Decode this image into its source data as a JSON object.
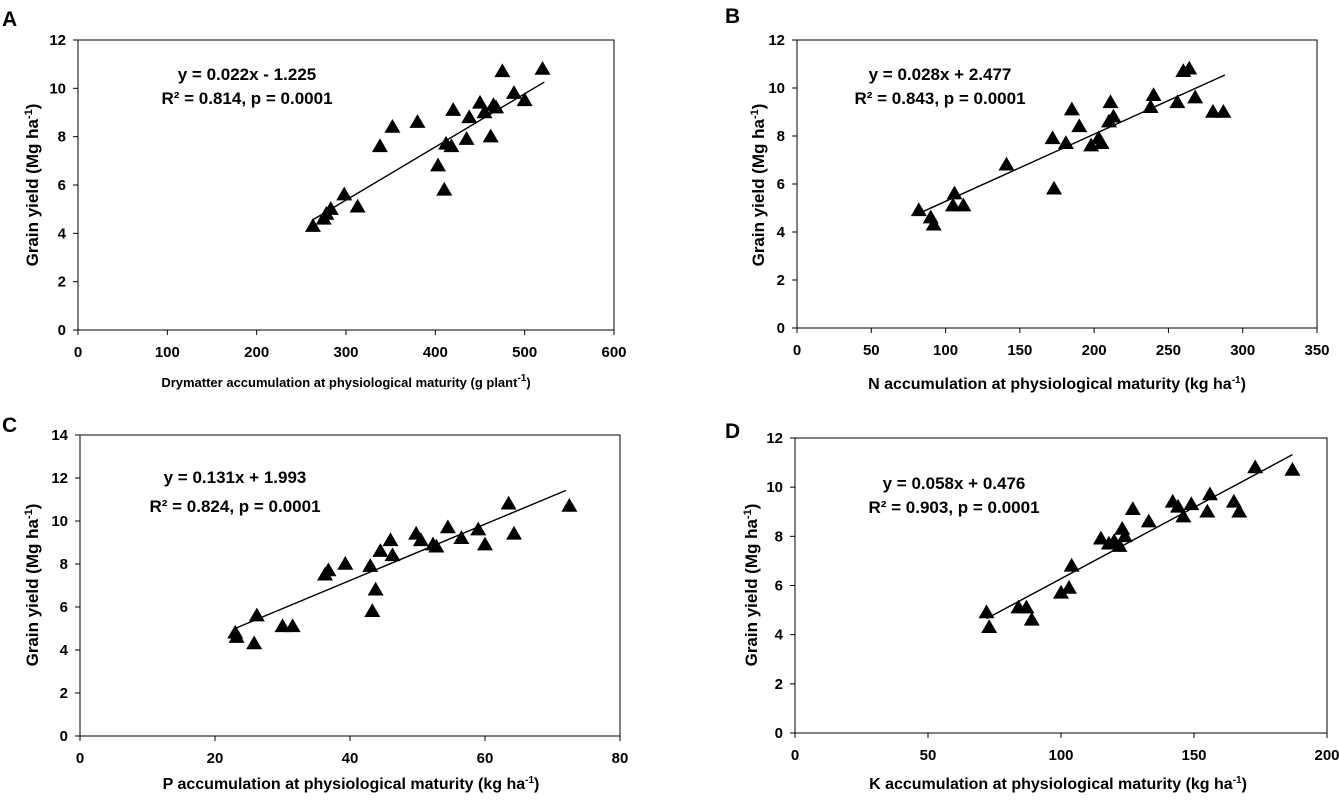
{
  "chart_data": [
    {
      "panel": "A",
      "type": "scatter",
      "xlabel": "Drymatter accumulation at physiological  maturity (g plant",
      "xlabel_sup": "-1",
      "xlabel_end": ")",
      "ylabel": "Grain yield (Mg ha",
      "ylabel_sup": "-1",
      "ylabel_end": ")",
      "xlim": [
        0,
        600
      ],
      "ylim": [
        0,
        12
      ],
      "xticks": [
        0,
        100,
        200,
        300,
        400,
        500,
        600
      ],
      "yticks": [
        0,
        2,
        4,
        6,
        8,
        10,
        12
      ],
      "equation": "y = 0.022x - 1.225",
      "r2_text": "R² = 0.814, p = 0.0001",
      "fit": {
        "slope": 0.022,
        "intercept": -1.225,
        "x_range": [
          263,
          522
        ]
      },
      "points": [
        [
          263,
          4.3
        ],
        [
          275,
          4.6
        ],
        [
          278,
          4.8
        ],
        [
          283,
          5.0
        ],
        [
          298,
          5.6
        ],
        [
          313,
          5.1
        ],
        [
          338,
          7.6
        ],
        [
          352,
          8.4
        ],
        [
          380,
          8.6
        ],
        [
          403,
          6.8
        ],
        [
          410,
          5.8
        ],
        [
          412,
          7.7
        ],
        [
          418,
          7.6
        ],
        [
          420,
          9.1
        ],
        [
          435,
          7.9
        ],
        [
          438,
          8.8
        ],
        [
          450,
          9.4
        ],
        [
          455,
          9.0
        ],
        [
          462,
          8.0
        ],
        [
          465,
          9.3
        ],
        [
          468,
          9.2
        ],
        [
          475,
          10.7
        ],
        [
          488,
          9.8
        ],
        [
          500,
          9.5
        ],
        [
          520,
          10.8
        ]
      ]
    },
    {
      "panel": "B",
      "type": "scatter",
      "xlabel": "N accumulation at physiological maturity (kg ha",
      "xlabel_sup": "-1",
      "xlabel_end": ")",
      "ylabel": "Grain yield (Mg ha",
      "ylabel_sup": "-1",
      "ylabel_end": ")",
      "xlim": [
        0,
        350
      ],
      "ylim": [
        0,
        12
      ],
      "xticks": [
        0,
        50,
        100,
        150,
        200,
        250,
        300,
        350
      ],
      "yticks": [
        0,
        2,
        4,
        6,
        8,
        10,
        12
      ],
      "equation": "y = 0.028x + 2.477",
      "r2_text": "R² = 0.843, p = 0.0001",
      "fit": {
        "slope": 0.028,
        "intercept": 2.477,
        "x_range": [
          82,
          288
        ]
      },
      "points": [
        [
          82,
          4.9
        ],
        [
          90,
          4.6
        ],
        [
          92,
          4.3
        ],
        [
          105,
          5.1
        ],
        [
          106,
          5.6
        ],
        [
          112,
          5.1
        ],
        [
          141,
          6.8
        ],
        [
          172,
          7.9
        ],
        [
          173,
          5.8
        ],
        [
          181,
          7.7
        ],
        [
          185,
          9.1
        ],
        [
          190,
          8.4
        ],
        [
          198,
          7.6
        ],
        [
          203,
          7.9
        ],
        [
          205,
          7.7
        ],
        [
          210,
          8.6
        ],
        [
          211,
          9.4
        ],
        [
          213,
          8.8
        ],
        [
          238,
          9.2
        ],
        [
          240,
          9.7
        ],
        [
          256,
          9.4
        ],
        [
          260,
          10.7
        ],
        [
          264,
          10.8
        ],
        [
          268,
          9.6
        ],
        [
          280,
          9.0
        ],
        [
          287,
          9.0
        ]
      ]
    },
    {
      "panel": "C",
      "type": "scatter",
      "xlabel": "P accumulation at physiological maturity (kg ha",
      "xlabel_sup": "-1",
      "xlabel_end": ")",
      "ylabel": "Grain yield (Mg ha",
      "ylabel_sup": "-1",
      "ylabel_end": ")",
      "xlim": [
        0,
        80
      ],
      "ylim": [
        0,
        14
      ],
      "xticks": [
        0,
        20,
        40,
        60,
        80
      ],
      "yticks": [
        0,
        2,
        4,
        6,
        8,
        10,
        12,
        14
      ],
      "equation": "y = 0.131x + 1.993",
      "r2_text": "R² = 0.824, p = 0.0001",
      "fit": {
        "slope": 0.131,
        "intercept": 1.993,
        "x_range": [
          23,
          72
        ]
      },
      "points": [
        [
          23,
          4.8
        ],
        [
          23.2,
          4.6
        ],
        [
          25.8,
          4.3
        ],
        [
          26.2,
          5.6
        ],
        [
          30,
          5.1
        ],
        [
          31.5,
          5.1
        ],
        [
          36.3,
          7.5
        ],
        [
          36.8,
          7.7
        ],
        [
          39.3,
          8.0
        ],
        [
          43,
          7.9
        ],
        [
          43.3,
          5.8
        ],
        [
          43.8,
          6.8
        ],
        [
          44.5,
          8.6
        ],
        [
          46,
          9.1
        ],
        [
          46.3,
          8.4
        ],
        [
          49.8,
          9.4
        ],
        [
          50.5,
          9.1
        ],
        [
          52.3,
          8.9
        ],
        [
          52.8,
          8.8
        ],
        [
          54.5,
          9.7
        ],
        [
          56.5,
          9.2
        ],
        [
          59,
          9.6
        ],
        [
          60,
          8.9
        ],
        [
          63.5,
          10.8
        ],
        [
          64.3,
          9.4
        ],
        [
          72.5,
          10.7
        ]
      ]
    },
    {
      "panel": "D",
      "type": "scatter",
      "xlabel": "K accumulation at physiological maturity (kg ha",
      "xlabel_sup": "-1",
      "xlabel_end": ")",
      "ylabel": "Grain yield (Mg ha",
      "ylabel_sup": "-1",
      "ylabel_end": ")",
      "xlim": [
        0,
        200
      ],
      "ylim": [
        0,
        12
      ],
      "xticks": [
        0,
        50,
        100,
        150,
        200
      ],
      "yticks": [
        0,
        2,
        4,
        6,
        8,
        10,
        12
      ],
      "equation": "y = 0.058x + 0.476",
      "r2_text": "R² = 0.903, p = 0.0001",
      "fit": {
        "slope": 0.058,
        "intercept": 0.476,
        "x_range": [
          72,
          187
        ]
      },
      "points": [
        [
          72,
          4.9
        ],
        [
          73,
          4.3
        ],
        [
          84,
          5.1
        ],
        [
          87,
          5.1
        ],
        [
          89,
          4.6
        ],
        [
          100,
          5.7
        ],
        [
          103,
          5.9
        ],
        [
          104,
          6.8
        ],
        [
          115,
          7.9
        ],
        [
          118,
          7.7
        ],
        [
          120,
          7.8
        ],
        [
          122,
          7.6
        ],
        [
          123,
          8.3
        ],
        [
          124,
          8.0
        ],
        [
          127,
          9.1
        ],
        [
          133,
          8.6
        ],
        [
          142,
          9.4
        ],
        [
          144,
          9.2
        ],
        [
          146,
          8.8
        ],
        [
          149,
          9.3
        ],
        [
          155,
          9.0
        ],
        [
          156,
          9.7
        ],
        [
          165,
          9.4
        ],
        [
          167,
          9.0
        ],
        [
          173,
          10.8
        ],
        [
          187,
          10.7
        ]
      ]
    }
  ]
}
